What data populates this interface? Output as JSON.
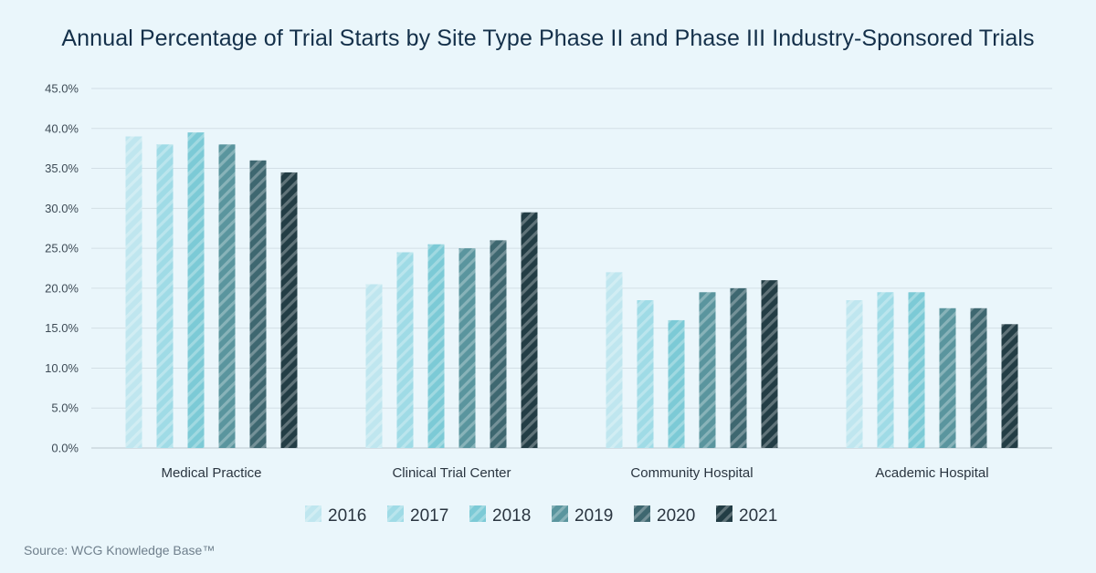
{
  "title": "Annual Percentage of Trial Starts by Site Type Phase II and Phase III Industry-Sponsored Trials",
  "source": "Source: WCG Knowledge Base™",
  "chart_data": {
    "type": "bar",
    "title": "Annual Percentage of Trial Starts by Site Type Phase II and Phase III Industry-Sponsored Trials",
    "xlabel": "",
    "ylabel": "",
    "ylim": [
      0,
      45
    ],
    "yticks": [
      "0.0%",
      "5.0%",
      "10.0%",
      "15.0%",
      "20.0%",
      "25.0%",
      "30.0%",
      "35.0%",
      "40.0%",
      "45.0%"
    ],
    "categories": [
      "Medical Practice",
      "Clinical Trial Center",
      "Community Hospital",
      "Academic Hospital"
    ],
    "grid": true,
    "legend": "bottom",
    "series": [
      {
        "name": "2016",
        "color": "#bfe6ef",
        "values": [
          39.0,
          20.5,
          22.0,
          18.5
        ]
      },
      {
        "name": "2017",
        "color": "#9fdbe6",
        "values": [
          38.0,
          24.5,
          18.5,
          19.5
        ]
      },
      {
        "name": "2018",
        "color": "#7ccad6",
        "values": [
          39.5,
          25.5,
          16.0,
          19.5
        ]
      },
      {
        "name": "2019",
        "color": "#5a959e",
        "values": [
          38.0,
          25.0,
          19.5,
          17.5
        ]
      },
      {
        "name": "2020",
        "color": "#3e6770",
        "values": [
          36.0,
          26.0,
          20.0,
          17.5
        ]
      },
      {
        "name": "2021",
        "color": "#233d45",
        "values": [
          34.5,
          29.5,
          21.0,
          15.5
        ]
      }
    ]
  }
}
